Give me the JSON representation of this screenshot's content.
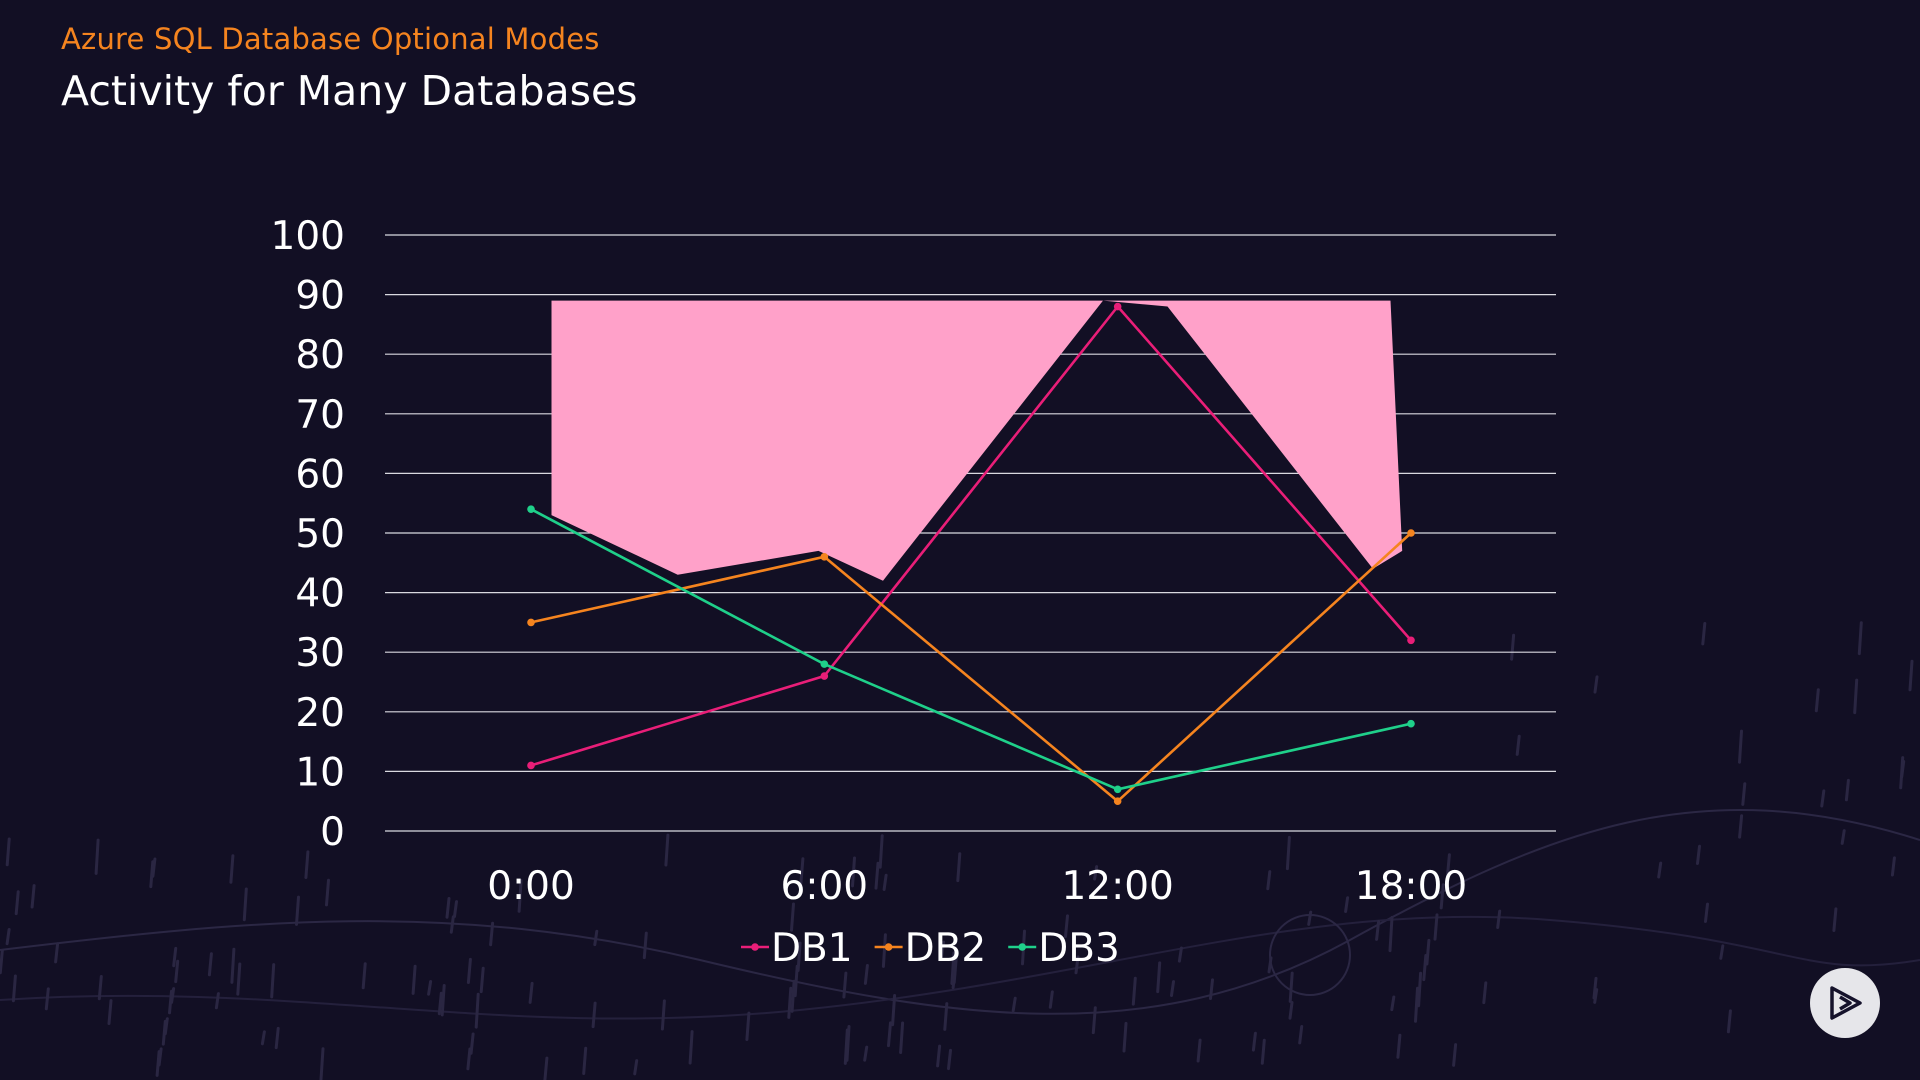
{
  "slide": {
    "subtitle": "Azure SQL Database Optional Modes",
    "title": "Activity for Many Databases"
  },
  "colors": {
    "background": "#120f24",
    "subtitle": "#f5841f",
    "highlight_area": "#ffa1c9",
    "gridline": "#d9d9e0"
  },
  "chart_data": {
    "type": "line",
    "categories": [
      "0:00",
      "6:00",
      "12:00",
      "18:00"
    ],
    "yticks": [
      0,
      10,
      20,
      30,
      40,
      50,
      60,
      70,
      80,
      90,
      100
    ],
    "ylim": [
      0,
      100
    ],
    "grid": true,
    "legend_position": "bottom",
    "series": [
      {
        "name": "DB1",
        "color": "#e91e78",
        "values": [
          11,
          26,
          88,
          32
        ]
      },
      {
        "name": "DB2",
        "color": "#f5841f",
        "values": [
          35,
          46,
          5,
          50
        ]
      },
      {
        "name": "DB3",
        "color": "#1fd08a",
        "values": [
          54,
          28,
          7,
          18
        ]
      }
    ],
    "annotations": [
      {
        "type": "filled-area",
        "color": "#ffa1c9",
        "points": [
          [
            0.07,
            89
          ],
          [
            1.97,
            89
          ],
          [
            2.05,
            89
          ],
          [
            2.93,
            89
          ],
          [
            2.97,
            47
          ],
          [
            2.87,
            44
          ],
          [
            2.17,
            88
          ],
          [
            1.95,
            89
          ],
          [
            1.2,
            42
          ],
          [
            0.98,
            47
          ],
          [
            0.5,
            43
          ],
          [
            0.07,
            53
          ]
        ]
      }
    ]
  },
  "player": {
    "icon": "play-icon"
  }
}
